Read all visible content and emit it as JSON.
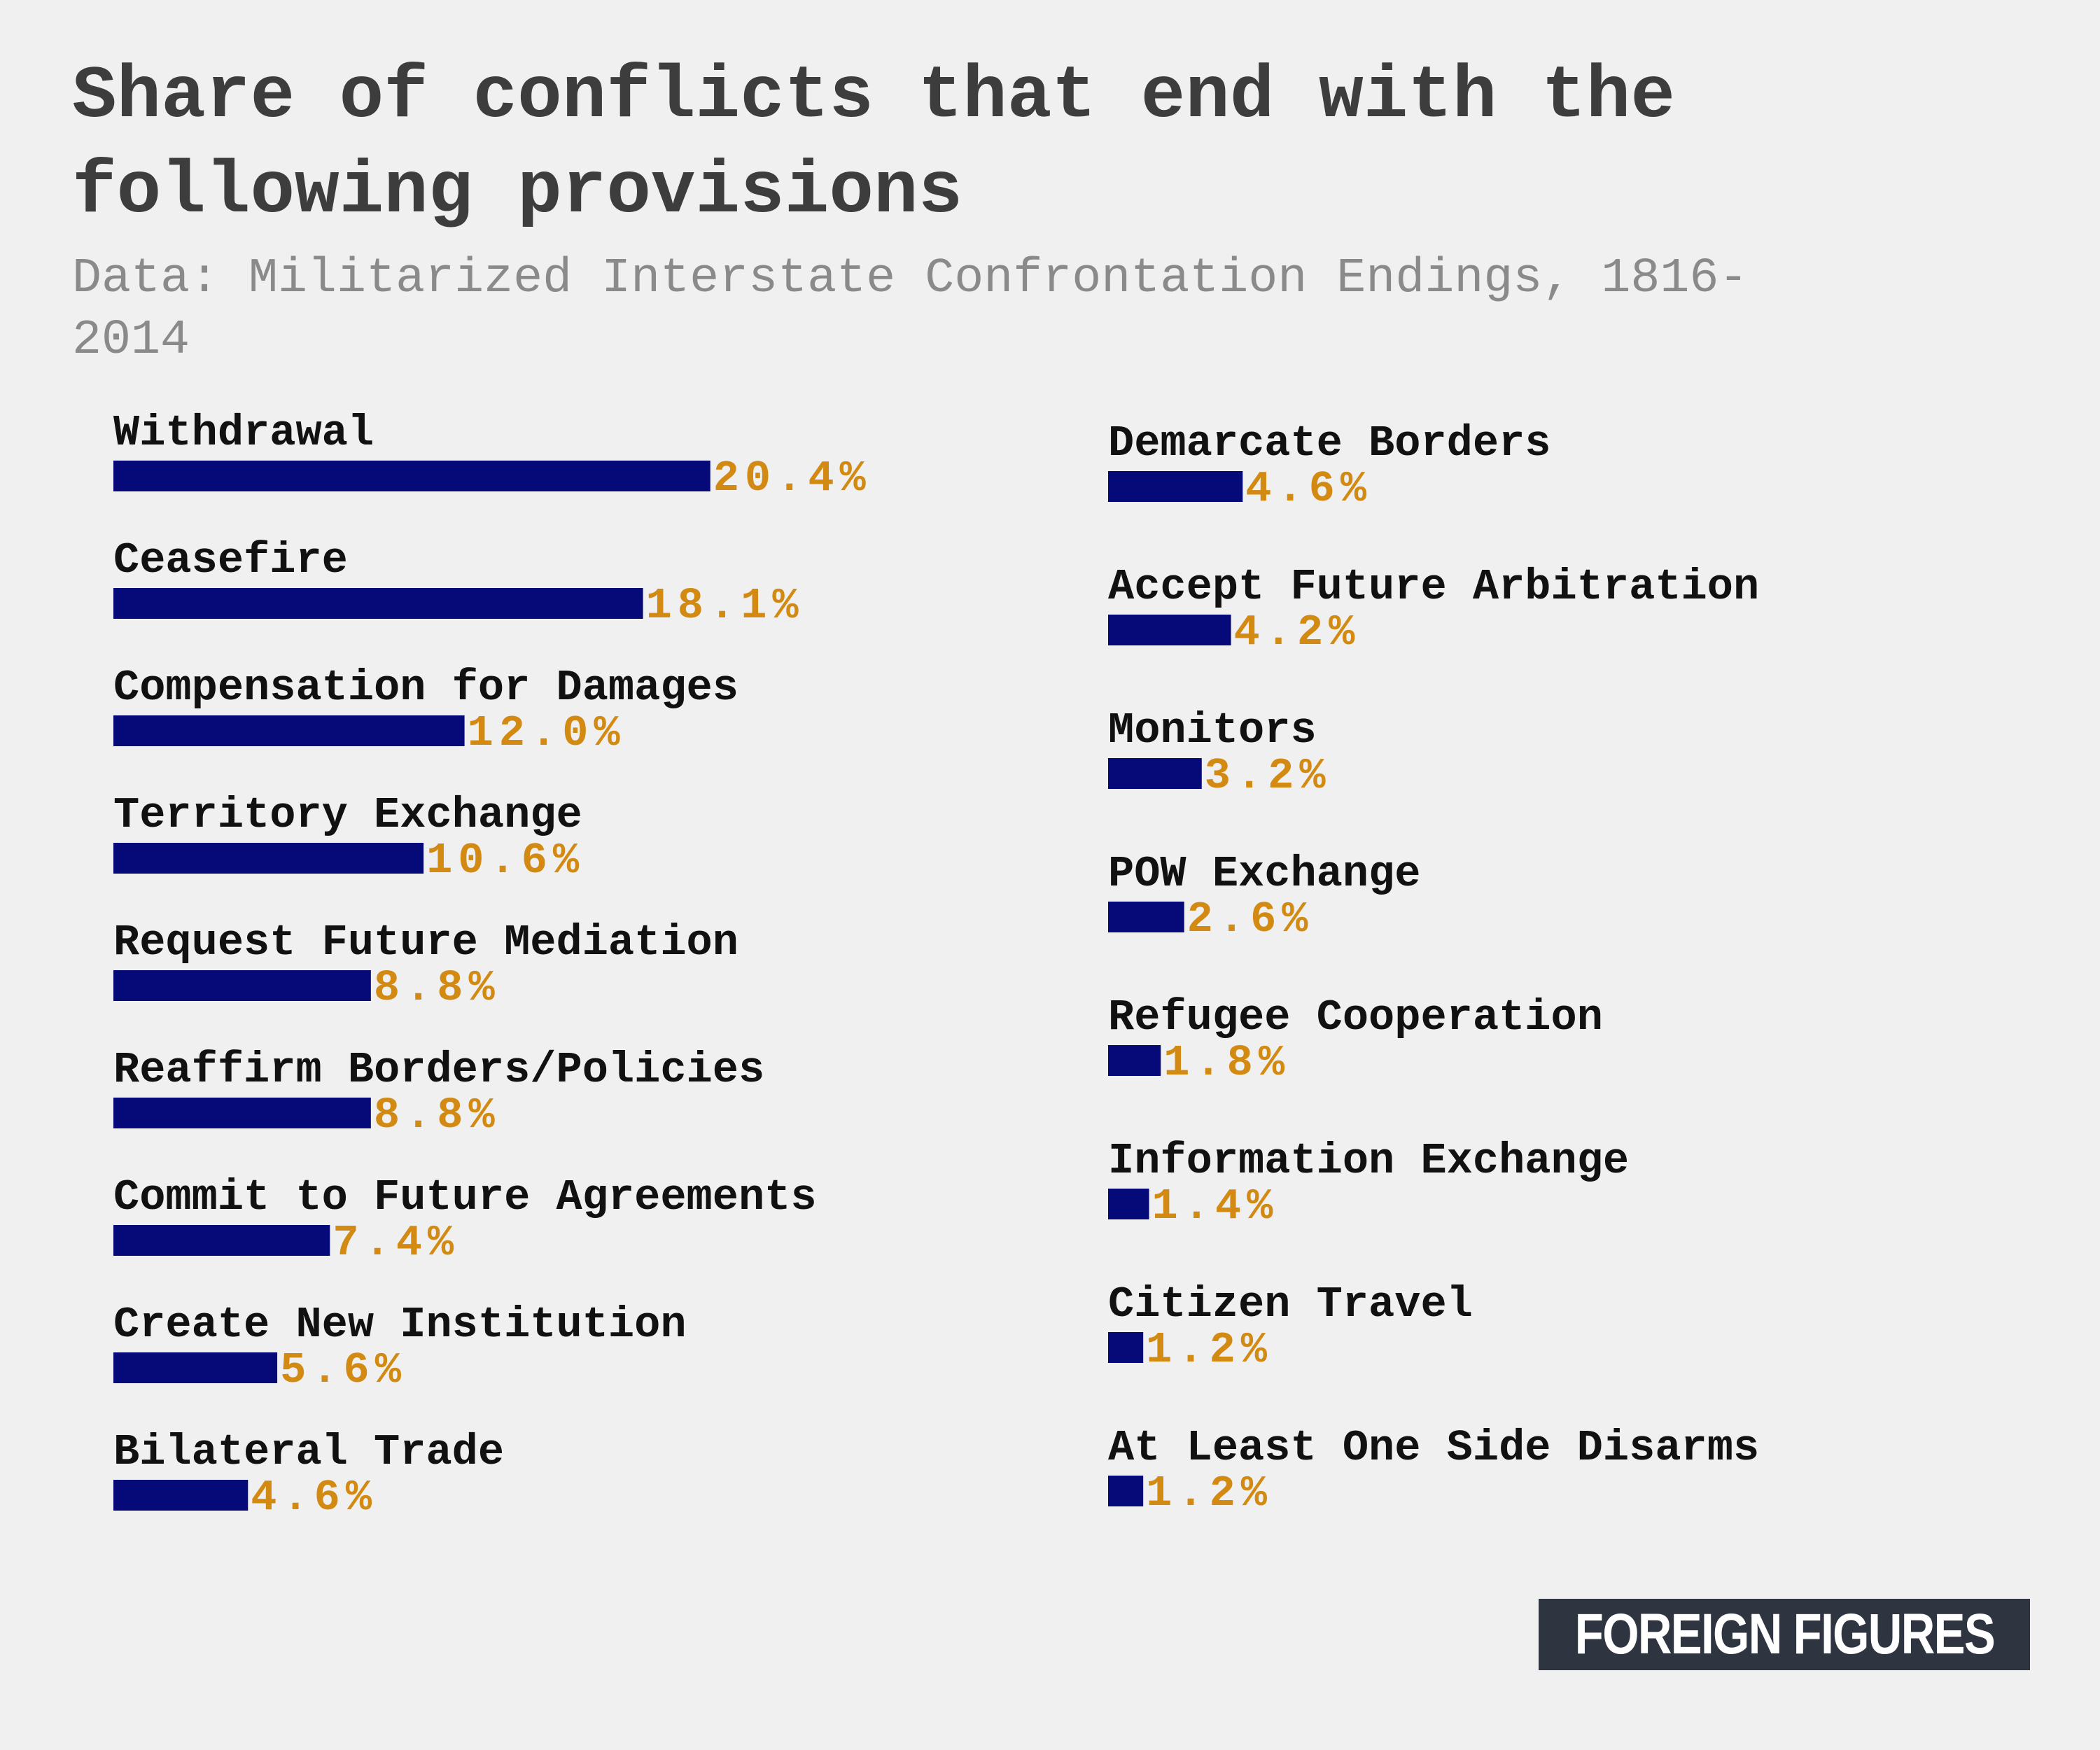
{
  "chart_data": {
    "type": "bar",
    "orientation": "horizontal",
    "title": "Share of conflicts that end with the following provisions",
    "subtitle": "Data: Militarized Interstate Confrontation Endings, 1816-2014",
    "unit": "%",
    "columns": [
      {
        "categories": [
          "Withdrawal",
          "Ceasefire",
          "Compensation for Damages",
          "Territory Exchange",
          "Request Future Mediation",
          "Reaffirm Borders/Policies",
          "Commit to Future Agreements",
          "Create New Institution",
          "Bilateral Trade"
        ],
        "values": [
          20.4,
          18.1,
          12.0,
          10.6,
          8.8,
          8.8,
          7.4,
          5.6,
          4.6
        ],
        "value_labels": [
          "20.4%",
          "18.1%",
          "12.0%",
          "10.6%",
          "8.8%",
          "8.8%",
          "7.4%",
          "5.6%",
          "4.6%"
        ]
      },
      {
        "categories": [
          "Demarcate Borders",
          "Accept Future Arbitration",
          "Monitors",
          "POW Exchange",
          "Refugee Cooperation",
          "Information Exchange",
          "Citizen Travel",
          "At Least One Side Disarms"
        ],
        "values": [
          4.6,
          4.2,
          3.2,
          2.6,
          1.8,
          1.4,
          1.2,
          1.2
        ],
        "value_labels": [
          "4.6%",
          "4.2%",
          "3.2%",
          "2.6%",
          "1.8%",
          "1.4%",
          "1.2%",
          "1.2%"
        ]
      }
    ],
    "colors": {
      "bar": "#050a78",
      "value_label": "#d28a12",
      "category_label": "#111111"
    }
  },
  "branding": {
    "logo_text": "FOREIGN FIGURES"
  }
}
